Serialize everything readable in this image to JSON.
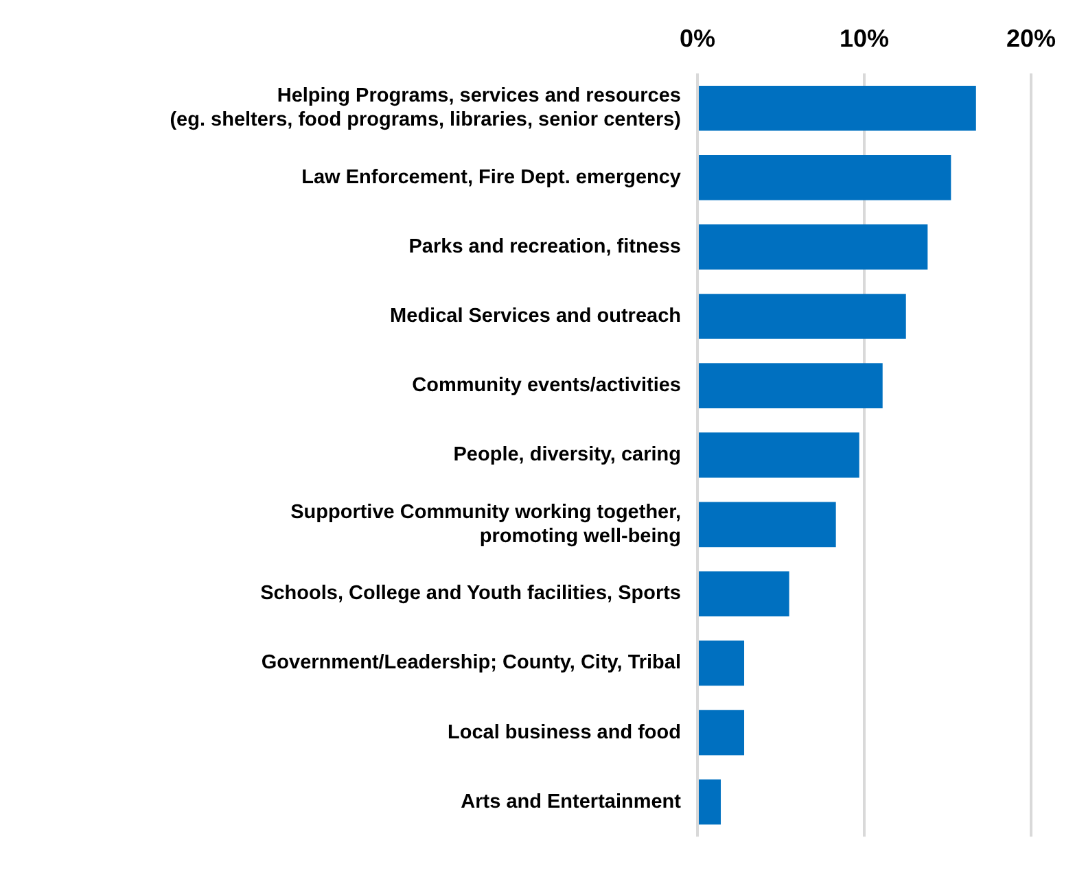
{
  "chart_data": {
    "type": "bar",
    "orientation": "horizontal",
    "categories": [
      "Helping Programs, services and resources\n(eg. shelters, food programs, libraries, senior centers)",
      "Law Enforcement, Fire Dept. emergency",
      "Parks and recreation, fitness",
      "Medical Services and outreach",
      "Community events/activities",
      "People, diversity, caring",
      "Supportive Community working together,\npromoting well-being",
      "Schools, College and Youth facilities, Sports",
      "Government/Leadership; County, City, Tribal",
      "Local business and food",
      "Arts and Entertainment"
    ],
    "values": [
      16.7,
      15.2,
      13.8,
      12.5,
      11.1,
      9.7,
      8.3,
      5.5,
      2.8,
      2.8,
      1.4
    ],
    "color": "#0070c0",
    "xlim": [
      0,
      20
    ],
    "xticks": [
      {
        "value": 0,
        "label": "0%"
      },
      {
        "value": 10,
        "label": "10%"
      },
      {
        "value": 20,
        "label": "20%"
      }
    ],
    "grid": "x",
    "legend": false
  }
}
